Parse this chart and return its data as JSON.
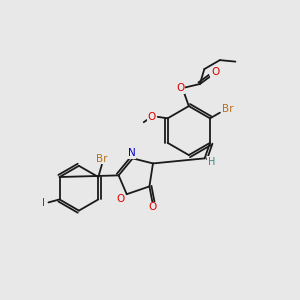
{
  "bg_color": "#e8e8e8",
  "bond_color": "#1a1a1a",
  "atom_colors": {
    "Br": "#b87020",
    "I": "#aa00bb",
    "O": "#dd0000",
    "N": "#0000cc",
    "H": "#408080"
  },
  "lw": 1.3,
  "fontsize": 7.5
}
